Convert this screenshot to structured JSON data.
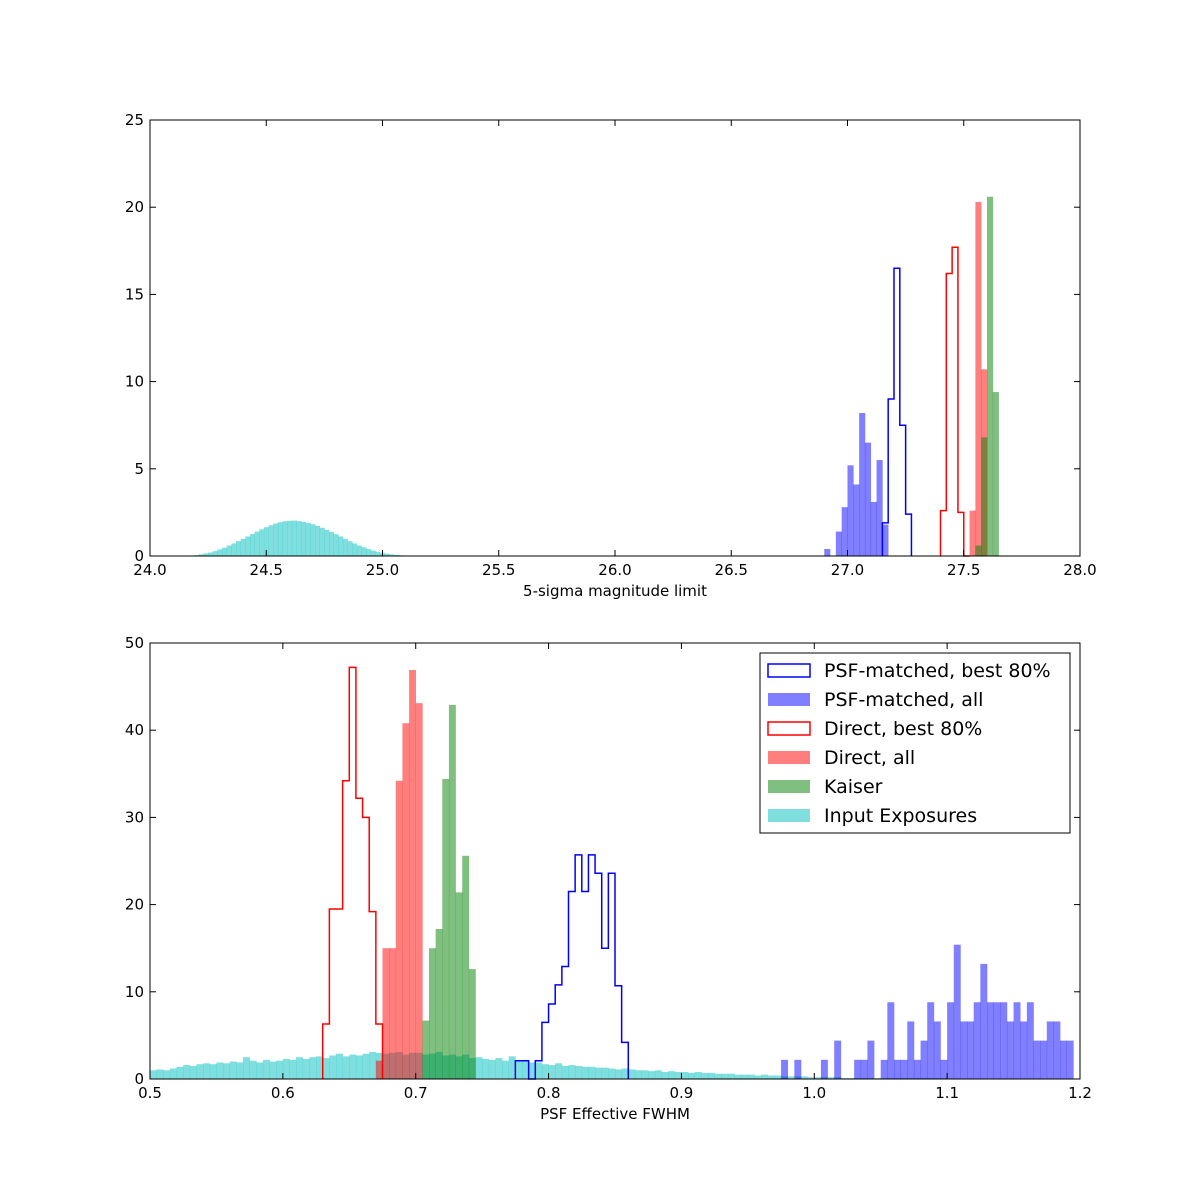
{
  "colors": {
    "psf_matched": "#0000ff",
    "direct": "#ff0000",
    "kaiser": "#008000",
    "input": "#00bfbf"
  },
  "chart_data": [
    {
      "type": "histogram",
      "xlabel": "5-sigma magnitude limit",
      "ylabel": "",
      "xlim": [
        24.0,
        28.0
      ],
      "ylim": [
        0,
        25
      ],
      "xticks": [
        "24.0",
        "24.5",
        "25.0",
        "25.5",
        "26.0",
        "26.5",
        "27.0",
        "27.5",
        "28.0"
      ],
      "yticks": [
        "0",
        "5",
        "10",
        "15",
        "20",
        "25"
      ],
      "bin_width": 0.025,
      "series": [
        {
          "key": "input",
          "style": "filled",
          "alpha": 0.5,
          "bin_width": 0.02,
          "x": [
            24.19,
            24.21,
            24.23,
            24.25,
            24.27,
            24.29,
            24.31,
            24.33,
            24.35,
            24.37,
            24.39,
            24.41,
            24.43,
            24.45,
            24.47,
            24.49,
            24.51,
            24.53,
            24.55,
            24.57,
            24.59,
            24.61,
            24.63,
            24.65,
            24.67,
            24.69,
            24.71,
            24.73,
            24.75,
            24.77,
            24.79,
            24.81,
            24.83,
            24.85,
            24.87,
            24.89,
            24.91,
            24.93,
            24.95,
            24.97,
            24.99,
            25.01,
            25.03,
            25.05,
            25.07,
            25.09,
            25.11,
            25.13,
            25.15,
            25.17
          ],
          "y": [
            0.05,
            0.1,
            0.15,
            0.2,
            0.28,
            0.38,
            0.48,
            0.6,
            0.72,
            0.85,
            0.98,
            1.12,
            1.26,
            1.4,
            1.53,
            1.65,
            1.76,
            1.86,
            1.94,
            1.99,
            2.02,
            2.03,
            2.0,
            1.96,
            1.9,
            1.82,
            1.73,
            1.62,
            1.5,
            1.38,
            1.25,
            1.12,
            0.98,
            0.85,
            0.72,
            0.6,
            0.5,
            0.4,
            0.31,
            0.24,
            0.18,
            0.13,
            0.09,
            0.06,
            0.04,
            0.03,
            0.02,
            0.01,
            0.01,
            0.01
          ]
        },
        {
          "key": "psf_all",
          "style": "filled",
          "alpha": 0.5,
          "bin_width": 0.025,
          "x": [
            26.9,
            26.925,
            26.95,
            26.975,
            27.0,
            27.025,
            27.05,
            27.075,
            27.1,
            27.125,
            27.15
          ],
          "y": [
            0.4,
            0,
            1.4,
            2.8,
            5.2,
            4.1,
            8.2,
            6.5,
            3.1,
            5.5,
            1.8
          ]
        },
        {
          "key": "psf_best",
          "style": "step",
          "x": [
            27.15,
            27.175,
            27.2,
            27.225,
            27.25
          ],
          "y": [
            1.9,
            9.0,
            16.5,
            7.5,
            2.4
          ]
        },
        {
          "key": "direct_best",
          "style": "step",
          "x": [
            27.4,
            27.425,
            27.45,
            27.475,
            27.5
          ],
          "y": [
            2.6,
            16.2,
            17.7,
            2.5,
            0
          ]
        },
        {
          "key": "direct_all",
          "style": "filled",
          "alpha": 0.5,
          "bin_width": 0.025,
          "x": [
            27.525,
            27.55,
            27.575,
            27.6
          ],
          "y": [
            2.6,
            20.3,
            10.7,
            0
          ]
        },
        {
          "key": "kaiser",
          "style": "filled",
          "alpha": 0.5,
          "bin_width": 0.025,
          "x": [
            27.55,
            27.575,
            27.6,
            27.625
          ],
          "y": [
            0.6,
            6.8,
            20.6,
            9.4
          ]
        }
      ]
    },
    {
      "type": "histogram",
      "xlabel": "PSF Effective FWHM",
      "ylabel": "",
      "xlim": [
        0.5,
        1.2
      ],
      "ylim": [
        0,
        50
      ],
      "xticks": [
        "0.5",
        "0.6",
        "0.7",
        "0.8",
        "0.9",
        "1.0",
        "1.1",
        "1.2"
      ],
      "yticks": [
        "0",
        "10",
        "20",
        "30",
        "40",
        "50"
      ],
      "series": [
        {
          "key": "input",
          "style": "filled",
          "alpha": 0.5,
          "bin_width": 0.005,
          "x": [
            0.5,
            0.505,
            0.51,
            0.515,
            0.52,
            0.525,
            0.53,
            0.535,
            0.54,
            0.545,
            0.55,
            0.555,
            0.56,
            0.565,
            0.57,
            0.575,
            0.58,
            0.585,
            0.59,
            0.595,
            0.6,
            0.605,
            0.61,
            0.615,
            0.62,
            0.625,
            0.63,
            0.635,
            0.64,
            0.645,
            0.65,
            0.655,
            0.66,
            0.665,
            0.67,
            0.675,
            0.68,
            0.685,
            0.69,
            0.695,
            0.7,
            0.705,
            0.71,
            0.715,
            0.72,
            0.725,
            0.73,
            0.735,
            0.74,
            0.745,
            0.75,
            0.755,
            0.76,
            0.765,
            0.77,
            0.775,
            0.78,
            0.785,
            0.79,
            0.795,
            0.8,
            0.805,
            0.81,
            0.815,
            0.82,
            0.825,
            0.83,
            0.835,
            0.84,
            0.845,
            0.85,
            0.855,
            0.86,
            0.865,
            0.87,
            0.875,
            0.88,
            0.885,
            0.89,
            0.895,
            0.9,
            0.905,
            0.91,
            0.915,
            0.92,
            0.925,
            0.93,
            0.935,
            0.94,
            0.945,
            0.95,
            0.955,
            0.96,
            0.965,
            0.97,
            0.975,
            0.98,
            0.985,
            0.99,
            0.995,
            1.0,
            1.005,
            1.01,
            1.015,
            1.02,
            1.025,
            1.03,
            1.035,
            1.04,
            1.045,
            1.05,
            1.055,
            1.06,
            1.065,
            1.07,
            1.075,
            1.08,
            1.085,
            1.09,
            1.095
          ],
          "y": [
            1.0,
            1.1,
            1.0,
            1.2,
            1.4,
            1.6,
            1.5,
            1.7,
            1.8,
            1.7,
            1.9,
            1.8,
            2.0,
            1.9,
            2.5,
            2.1,
            1.9,
            2.2,
            2.0,
            2.1,
            2.3,
            2.2,
            2.5,
            2.3,
            2.5,
            2.6,
            2.4,
            2.7,
            2.9,
            2.6,
            2.8,
            2.7,
            2.9,
            3.1,
            3.0,
            2.9,
            3.0,
            3.1,
            2.8,
            3.0,
            3.0,
            2.8,
            2.9,
            3.1,
            2.7,
            2.8,
            2.6,
            2.8,
            2.4,
            2.5,
            2.3,
            2.2,
            2.4,
            2.1,
            2.6,
            2.0,
            2.2,
            1.9,
            1.9,
            1.7,
            1.6,
            1.8,
            1.5,
            1.6,
            1.5,
            1.4,
            1.4,
            1.3,
            1.3,
            1.2,
            1.1,
            1.2,
            1.1,
            1.0,
            1.0,
            0.9,
            1.0,
            0.8,
            0.9,
            0.8,
            0.8,
            0.7,
            0.8,
            0.7,
            0.7,
            0.6,
            0.6,
            0.6,
            0.5,
            0.5,
            0.5,
            0.4,
            0.5,
            0.4,
            0.4,
            0.3,
            0.3,
            0.3,
            0.3,
            0.2,
            0.2,
            0.2,
            0.2,
            0.2,
            0.1,
            0.1,
            0.1,
            0.1,
            0.1,
            0.1,
            0.1,
            0.1,
            0.1,
            0.1,
            0.1,
            0.1,
            0.1,
            0.1,
            0.1,
            0.1
          ]
        },
        {
          "key": "direct_best",
          "style": "step",
          "bin_width": 0.005,
          "x": [
            0.63,
            0.635,
            0.64,
            0.645,
            0.65,
            0.655,
            0.66,
            0.665,
            0.67
          ],
          "y": [
            6.3,
            19.5,
            19.5,
            34.2,
            47.2,
            32.2,
            30.0,
            19.2,
            6.3
          ]
        },
        {
          "key": "direct_all",
          "style": "filled",
          "alpha": 0.5,
          "bin_width": 0.005,
          "x": [
            0.67,
            0.675,
            0.68,
            0.685,
            0.69,
            0.695,
            0.7
          ],
          "y": [
            2.1,
            15.0,
            15.0,
            34.2,
            40.8,
            46.9,
            43.1
          ]
        },
        {
          "key": "kaiser",
          "style": "filled",
          "alpha": 0.5,
          "bin_width": 0.005,
          "x": [
            0.705,
            0.71,
            0.715,
            0.72,
            0.725,
            0.73,
            0.735,
            0.74
          ],
          "y": [
            6.7,
            15.0,
            17.2,
            34.4,
            42.9,
            21.4,
            25.6,
            12.6
          ]
        },
        {
          "key": "psf_best",
          "style": "step",
          "bin_width": 0.005,
          "x": [
            0.775,
            0.78,
            0.785,
            0.79,
            0.795,
            0.8,
            0.805,
            0.81,
            0.815,
            0.82,
            0.825,
            0.83,
            0.835,
            0.84,
            0.845,
            0.85,
            0.855
          ],
          "y": [
            2.1,
            2.1,
            0,
            2.1,
            6.5,
            8.6,
            10.8,
            12.9,
            21.5,
            25.7,
            21.5,
            25.7,
            23.6,
            15.0,
            23.6,
            10.7,
            4.2
          ]
        },
        {
          "key": "psf_all",
          "style": "filled",
          "alpha": 0.5,
          "bin_width": 0.005,
          "x": [
            0.975,
            0.98,
            0.985,
            0.99,
            0.995,
            1.0,
            1.005,
            1.01,
            1.015,
            1.02,
            1.025,
            1.03,
            1.035,
            1.04,
            1.045,
            1.05,
            1.055,
            1.06,
            1.065,
            1.07,
            1.075,
            1.08,
            1.085,
            1.09,
            1.095,
            1.1,
            1.105,
            1.11,
            1.115,
            1.12,
            1.125,
            1.13,
            1.135,
            1.14,
            1.145,
            1.15,
            1.155,
            1.16,
            1.165,
            1.17,
            1.175,
            1.18,
            1.185,
            1.19
          ],
          "y": [
            2.2,
            0,
            2.2,
            0,
            0,
            0,
            2.2,
            0,
            4.4,
            0,
            0,
            2.2,
            2.2,
            4.4,
            0,
            2.2,
            8.8,
            2.2,
            2.2,
            6.6,
            2.2,
            4.4,
            8.8,
            6.6,
            2.2,
            8.8,
            15.4,
            6.6,
            6.6,
            8.8,
            13.2,
            8.8,
            8.8,
            8.8,
            6.6,
            8.8,
            6.6,
            8.8,
            4.4,
            4.4,
            6.6,
            6.6,
            4.4,
            4.4
          ]
        }
      ]
    }
  ],
  "legend": {
    "placement": "top-right",
    "entries": [
      {
        "key": "psf_best",
        "label": "PSF-matched, best 80%",
        "style": "step"
      },
      {
        "key": "psf_all",
        "label": "PSF-matched, all",
        "style": "filled"
      },
      {
        "key": "direct_best",
        "label": "Direct, best 80%",
        "style": "step"
      },
      {
        "key": "direct_all",
        "label": "Direct, all",
        "style": "filled"
      },
      {
        "key": "kaiser",
        "label": "Kaiser",
        "style": "filled"
      },
      {
        "key": "input",
        "label": "Input Exposures",
        "style": "filled"
      }
    ]
  }
}
